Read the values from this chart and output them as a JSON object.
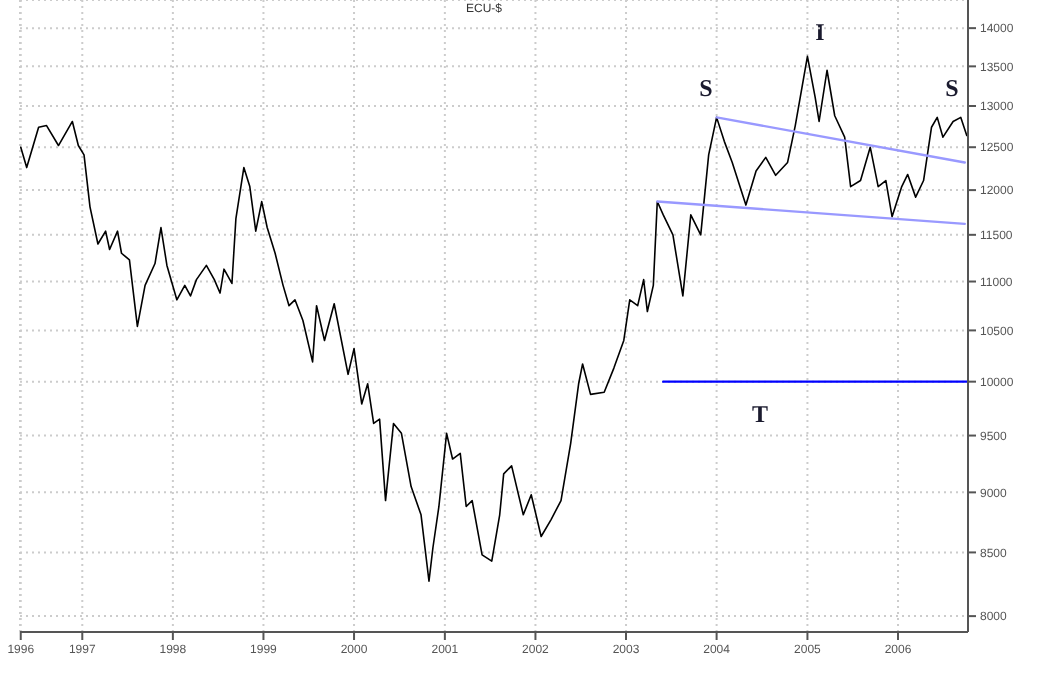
{
  "chart_data": {
    "type": "line",
    "title": "ECU-$",
    "log": "y",
    "grid": true,
    "legend": false,
    "marker": "none",
    "xlim": [
      "1996-04-25",
      "2006-10-10"
    ],
    "xticks": [
      {
        "value": "1996-04-28",
        "label": "1996"
      },
      {
        "value": "1997-01-01",
        "label": "1997"
      },
      {
        "value": "1998-01-01",
        "label": "1998"
      },
      {
        "value": "1999-01-01",
        "label": "1999"
      },
      {
        "value": "2000-01-01",
        "label": "2000"
      },
      {
        "value": "2001-01-01",
        "label": "2001"
      },
      {
        "value": "2002-01-01",
        "label": "2002"
      },
      {
        "value": "2003-01-01",
        "label": "2003"
      },
      {
        "value": "2004-01-01",
        "label": "2004"
      },
      {
        "value": "2005-01-01",
        "label": "2005"
      },
      {
        "value": "2006-01-01",
        "label": "2006"
      }
    ],
    "ylim": [
      7880,
      14380
    ],
    "yticks": [
      8000,
      8500,
      9000,
      9500,
      10000,
      10500,
      11000,
      11500,
      12000,
      12500,
      13000,
      13500,
      14000
    ],
    "series": [
      {
        "color": "#000000",
        "line_style": "solid",
        "x": [
          "1996-04-28",
          "1996-05-22",
          "1996-07-09",
          "1996-08-10",
          "1996-09-27",
          "1996-11-22",
          "1996-12-16",
          "1997-01-08",
          "1997-02-01",
          "1997-03-05",
          "1997-04-05",
          "1997-04-21",
          "1997-05-23",
          "1997-06-08",
          "1997-07-10",
          "1997-08-11",
          "1997-09-11",
          "1997-10-21",
          "1997-11-14",
          "1997-12-08",
          "1998-01-17",
          "1998-02-18",
          "1998-03-13",
          "1998-04-06",
          "1998-05-16",
          "1998-06-17",
          "1998-07-10",
          "1998-07-26",
          "1998-08-27",
          "1998-09-12",
          "1998-10-14",
          "1998-11-07",
          "1998-12-01",
          "1998-12-25",
          "1999-01-16",
          "1999-02-17",
          "1999-03-21",
          "1999-04-14",
          "1999-05-08",
          "1999-06-09",
          "1999-07-18",
          "1999-08-03",
          "1999-09-04",
          "1999-10-13",
          "1999-12-08",
          "2000-01-01",
          "2000-02-01",
          "2000-02-25",
          "2000-03-20",
          "2000-04-13",
          "2000-05-07",
          "2000-06-08",
          "2000-07-10",
          "2000-08-18",
          "2000-09-27",
          "2000-10-29",
          "2000-11-14",
          "2000-12-08",
          "2001-01-08",
          "2001-02-01",
          "2001-03-04",
          "2001-03-28",
          "2001-04-21",
          "2001-05-31",
          "2001-07-09",
          "2001-08-10",
          "2001-08-26",
          "2001-09-27",
          "2001-11-13",
          "2001-12-15",
          "2002-01-24",
          "2002-03-05",
          "2002-04-14",
          "2002-05-23",
          "2002-06-24",
          "2002-07-10",
          "2002-08-11",
          "2002-10-05",
          "2002-11-13",
          "2002-12-23",
          "2003-01-16",
          "2003-02-17",
          "2003-03-13",
          "2003-03-28",
          "2003-04-21",
          "2003-05-07",
          "2003-05-31",
          "2003-07-09",
          "2003-08-18",
          "2003-09-19",
          "2003-10-29",
          "2003-11-30",
          "2004-01-01",
          "2004-02-01",
          "2004-03-04",
          "2004-04-28",
          "2004-06-08",
          "2004-07-17",
          "2004-08-26",
          "2004-10-13",
          "2004-11-13",
          "2004-12-15",
          "2005-01-01",
          "2005-02-01",
          "2005-02-17",
          "2005-03-21",
          "2005-04-21",
          "2005-05-31",
          "2005-06-24",
          "2005-08-03",
          "2005-09-11",
          "2005-10-13",
          "2005-11-13",
          "2005-12-08",
          "2006-01-16",
          "2006-02-09",
          "2006-03-13",
          "2006-04-14",
          "2006-05-16",
          "2006-06-08",
          "2006-07-01",
          "2006-08-11",
          "2006-09-11",
          "2006-10-05"
        ],
        "values": [
          12500,
          12260,
          12740,
          12760,
          12520,
          12810,
          12520,
          12410,
          11810,
          11400,
          11540,
          11340,
          11540,
          11300,
          11230,
          10540,
          10960,
          11190,
          11580,
          11170,
          10810,
          10960,
          10850,
          11020,
          11170,
          11020,
          10880,
          11130,
          10980,
          11680,
          12260,
          12040,
          11540,
          11870,
          11580,
          11300,
          10960,
          10750,
          10810,
          10600,
          10190,
          10750,
          10400,
          10770,
          10070,
          10320,
          9790,
          9980,
          9610,
          9650,
          8930,
          9610,
          9520,
          9050,
          8810,
          8270,
          8540,
          8880,
          9520,
          9290,
          9340,
          8880,
          8930,
          8480,
          8430,
          8810,
          9160,
          9230,
          8810,
          8980,
          8630,
          8770,
          8930,
          9430,
          9980,
          10170,
          9880,
          9900,
          10130,
          10400,
          10810,
          10750,
          11020,
          10690,
          10960,
          11870,
          11720,
          11500,
          10850,
          11720,
          11500,
          12410,
          12860,
          12570,
          12320,
          11830,
          12220,
          12380,
          12170,
          12320,
          12760,
          13320,
          13630,
          13110,
          12810,
          13450,
          12880,
          12620,
          12040,
          12110,
          12500,
          12040,
          12110,
          11700,
          12040,
          12180,
          11920,
          12110,
          12740,
          12860,
          12620,
          12810,
          12860,
          12640
        ]
      },
      {
        "color": "#9999ff",
        "line_style": "solid",
        "x": [
          "2004-01-01",
          "2006-09-27"
        ],
        "values": [
          12860,
          12320
        ]
      },
      {
        "color": "#9999ff",
        "line_style": "solid",
        "x": [
          "2003-05-07",
          "2006-09-27"
        ],
        "values": [
          11870,
          11620
        ]
      },
      {
        "color": "#0000ff",
        "line_style": "solid",
        "x": [
          "2003-05-31",
          "2006-10-10"
        ],
        "values": [
          10000,
          10000
        ]
      }
    ],
    "annotations": [
      "S",
      "I",
      "S",
      "T"
    ]
  }
}
